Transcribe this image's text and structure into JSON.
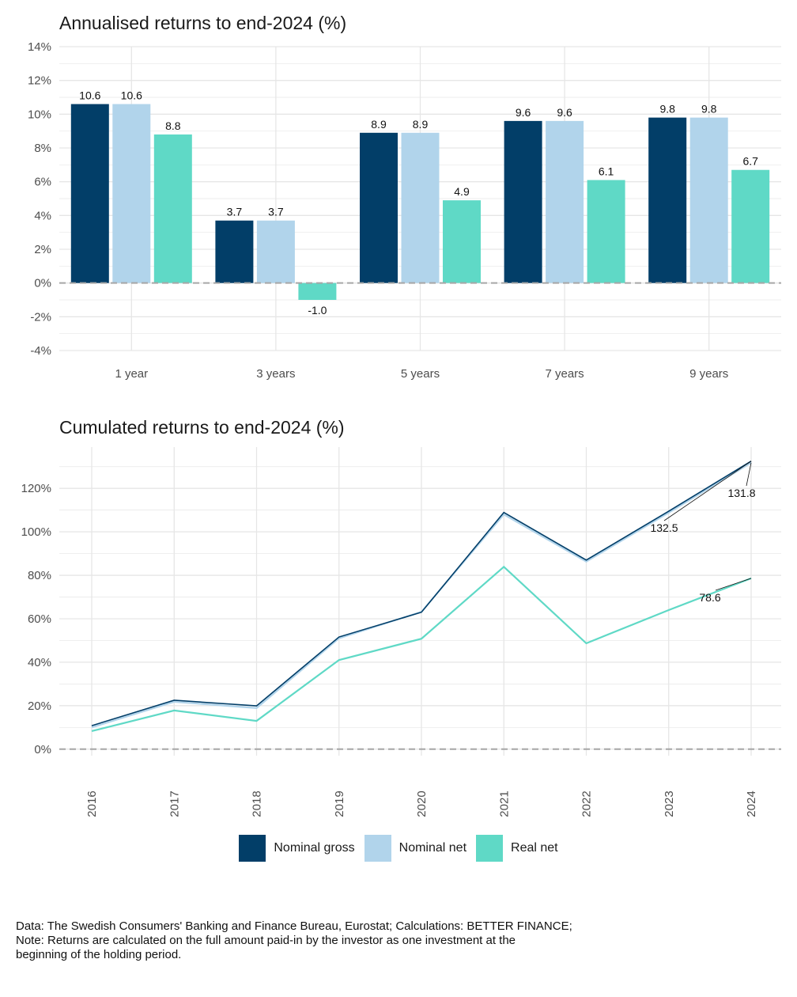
{
  "colors": {
    "nominal_gross": "#023e68",
    "nominal_net": "#b1d4eb",
    "real_net": "#5fd9c6",
    "grid": "#e6e6e6",
    "zero_line": "#a6a6a6"
  },
  "legend": [
    {
      "key": "nominal_gross",
      "label": "Nominal gross"
    },
    {
      "key": "nominal_net",
      "label": "Nominal net"
    },
    {
      "key": "real_net",
      "label": "Real net"
    }
  ],
  "note": {
    "line1": "Data: The Swedish Consumers' Banking and Finance Bureau, Eurostat; Calculations: BETTER FINANCE;",
    "line2": "Note: Returns are calculated on the full amount paid-in by the investor as one investment at the",
    "line3": "beginning of the holding period."
  },
  "chart_data": [
    {
      "type": "bar",
      "title": "Annualised returns to end-2024 (%)",
      "categories": [
        "1 year",
        "3 years",
        "5 years",
        "7 years",
        "9 years"
      ],
      "series": [
        {
          "name": "Nominal gross",
          "key": "nominal_gross",
          "values": [
            10.6,
            3.7,
            8.9,
            9.6,
            9.8
          ]
        },
        {
          "name": "Nominal net",
          "key": "nominal_net",
          "values": [
            10.6,
            3.7,
            8.9,
            9.6,
            9.8
          ]
        },
        {
          "name": "Real net",
          "key": "real_net",
          "values": [
            8.8,
            -1.0,
            4.9,
            6.1,
            6.7
          ]
        }
      ],
      "data_labels": [
        [
          "10.6",
          "3.7",
          "8.9",
          "9.6",
          "9.8"
        ],
        [
          "10.6",
          "3.7",
          "8.9",
          "9.6",
          "9.8"
        ],
        [
          "8.8",
          "-1.0",
          "4.9",
          "6.1",
          "6.7"
        ]
      ],
      "ylim": [
        -4,
        14
      ],
      "yticks": [
        -4,
        -2,
        0,
        2,
        4,
        6,
        8,
        10,
        12,
        14
      ],
      "ytick_labels": [
        "-4%",
        "-2%",
        "0%",
        "2%",
        "4%",
        "6%",
        "8%",
        "10%",
        "12%",
        "14%"
      ],
      "grid": true
    },
    {
      "type": "line",
      "title": "Cumulated returns to end-2024 (%)",
      "x": [
        "2016",
        "2017",
        "2018",
        "2019",
        "2020",
        "2021",
        "2022",
        "2023",
        "2024"
      ],
      "series": [
        {
          "name": "Nominal gross",
          "key": "nominal_gross",
          "values": [
            10.8,
            22.5,
            19.9,
            51.6,
            63.0,
            108.9,
            87.0,
            109.5,
            132.5
          ]
        },
        {
          "name": "Nominal net",
          "key": "nominal_net",
          "values": [
            10.0,
            21.8,
            18.9,
            51.0,
            63.2,
            108.0,
            86.3,
            108.8,
            131.8
          ]
        },
        {
          "name": "Real net",
          "key": "real_net",
          "values": [
            8.3,
            17.8,
            13.0,
            41.0,
            50.8,
            83.9,
            48.7,
            64.0,
            78.6
          ]
        }
      ],
      "end_labels": [
        "132.5",
        "131.8",
        "78.6"
      ],
      "ylim": [
        -3,
        139
      ],
      "yticks": [
        0,
        20,
        40,
        60,
        80,
        100,
        120
      ],
      "ytick_labels": [
        "0%",
        "20%",
        "40%",
        "60%",
        "80%",
        "100%",
        "120%"
      ],
      "grid": true
    }
  ]
}
